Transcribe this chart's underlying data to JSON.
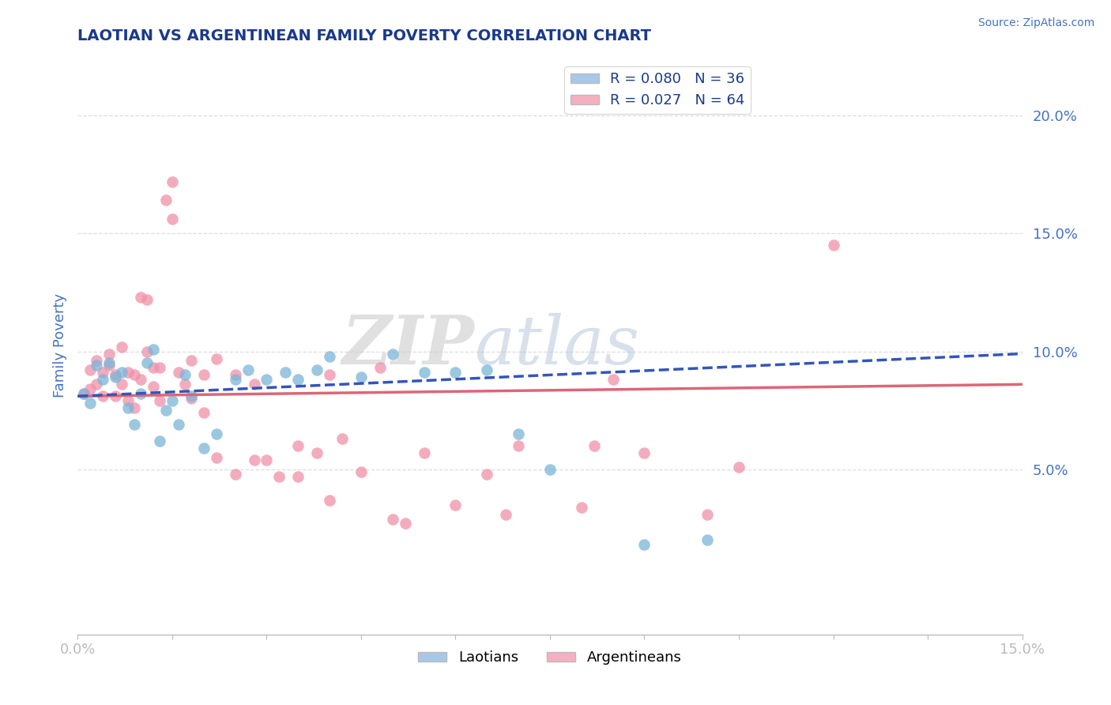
{
  "title": "LAOTIAN VS ARGENTINEAN FAMILY POVERTY CORRELATION CHART",
  "source": "Source: ZipAtlas.com",
  "ylabel": "Family Poverty",
  "xlim": [
    0.0,
    0.15
  ],
  "ylim": [
    -0.02,
    0.225
  ],
  "ytick_positions": [
    0.05,
    0.1,
    0.15,
    0.2
  ],
  "ytick_labels": [
    "5.0%",
    "10.0%",
    "15.0%",
    "20.0%"
  ],
  "xtick_positions": [
    0.0,
    0.015,
    0.03,
    0.045,
    0.06,
    0.075,
    0.09,
    0.105,
    0.12,
    0.135,
    0.15
  ],
  "xtick_labels": [
    "0.0%",
    "",
    "",
    "",
    "",
    "",
    "",
    "",
    "",
    "",
    "15.0%"
  ],
  "legend_top": [
    {
      "label": "R = 0.080   N = 36",
      "color": "#a8c8e8"
    },
    {
      "label": "R = 0.027   N = 64",
      "color": "#f4b0c0"
    }
  ],
  "legend_bottom": [
    {
      "label": "Laotians",
      "color": "#a8c8e8"
    },
    {
      "label": "Argentineans",
      "color": "#f4b0c0"
    }
  ],
  "laotian_dot_color": "#7ab5d8",
  "argentinean_dot_color": "#f090a8",
  "laotian_line_color": "#3355bb",
  "argentinean_line_color": "#dd6677",
  "laotian_scatter": [
    [
      0.001,
      0.082
    ],
    [
      0.002,
      0.078
    ],
    [
      0.003,
      0.094
    ],
    [
      0.004,
      0.088
    ],
    [
      0.005,
      0.095
    ],
    [
      0.006,
      0.089
    ],
    [
      0.007,
      0.091
    ],
    [
      0.008,
      0.076
    ],
    [
      0.009,
      0.069
    ],
    [
      0.01,
      0.082
    ],
    [
      0.011,
      0.095
    ],
    [
      0.012,
      0.101
    ],
    [
      0.013,
      0.062
    ],
    [
      0.014,
      0.075
    ],
    [
      0.015,
      0.079
    ],
    [
      0.016,
      0.069
    ],
    [
      0.017,
      0.09
    ],
    [
      0.018,
      0.081
    ],
    [
      0.02,
      0.059
    ],
    [
      0.022,
      0.065
    ],
    [
      0.025,
      0.088
    ],
    [
      0.027,
      0.092
    ],
    [
      0.03,
      0.088
    ],
    [
      0.033,
      0.091
    ],
    [
      0.035,
      0.088
    ],
    [
      0.038,
      0.092
    ],
    [
      0.04,
      0.098
    ],
    [
      0.045,
      0.089
    ],
    [
      0.05,
      0.099
    ],
    [
      0.055,
      0.091
    ],
    [
      0.06,
      0.091
    ],
    [
      0.065,
      0.092
    ],
    [
      0.07,
      0.065
    ],
    [
      0.075,
      0.05
    ],
    [
      0.09,
      0.018
    ],
    [
      0.1,
      0.02
    ]
  ],
  "argentinean_scatter": [
    [
      0.001,
      0.082
    ],
    [
      0.002,
      0.092
    ],
    [
      0.002,
      0.084
    ],
    [
      0.003,
      0.096
    ],
    [
      0.003,
      0.086
    ],
    [
      0.004,
      0.091
    ],
    [
      0.004,
      0.081
    ],
    [
      0.005,
      0.099
    ],
    [
      0.005,
      0.094
    ],
    [
      0.006,
      0.09
    ],
    [
      0.006,
      0.081
    ],
    [
      0.007,
      0.102
    ],
    [
      0.007,
      0.086
    ],
    [
      0.008,
      0.091
    ],
    [
      0.008,
      0.079
    ],
    [
      0.009,
      0.09
    ],
    [
      0.009,
      0.076
    ],
    [
      0.01,
      0.123
    ],
    [
      0.01,
      0.088
    ],
    [
      0.011,
      0.1
    ],
    [
      0.011,
      0.122
    ],
    [
      0.012,
      0.093
    ],
    [
      0.012,
      0.085
    ],
    [
      0.013,
      0.093
    ],
    [
      0.013,
      0.079
    ],
    [
      0.014,
      0.164
    ],
    [
      0.015,
      0.172
    ],
    [
      0.015,
      0.156
    ],
    [
      0.016,
      0.091
    ],
    [
      0.017,
      0.086
    ],
    [
      0.018,
      0.096
    ],
    [
      0.018,
      0.08
    ],
    [
      0.02,
      0.09
    ],
    [
      0.02,
      0.074
    ],
    [
      0.022,
      0.097
    ],
    [
      0.022,
      0.055
    ],
    [
      0.025,
      0.09
    ],
    [
      0.025,
      0.048
    ],
    [
      0.028,
      0.086
    ],
    [
      0.028,
      0.054
    ],
    [
      0.03,
      0.054
    ],
    [
      0.032,
      0.047
    ],
    [
      0.035,
      0.06
    ],
    [
      0.035,
      0.047
    ],
    [
      0.038,
      0.057
    ],
    [
      0.04,
      0.09
    ],
    [
      0.04,
      0.037
    ],
    [
      0.042,
      0.063
    ],
    [
      0.045,
      0.049
    ],
    [
      0.048,
      0.093
    ],
    [
      0.05,
      0.029
    ],
    [
      0.052,
      0.027
    ],
    [
      0.055,
      0.057
    ],
    [
      0.06,
      0.035
    ],
    [
      0.065,
      0.048
    ],
    [
      0.068,
      0.031
    ],
    [
      0.07,
      0.06
    ],
    [
      0.08,
      0.034
    ],
    [
      0.082,
      0.06
    ],
    [
      0.085,
      0.088
    ],
    [
      0.09,
      0.057
    ],
    [
      0.1,
      0.031
    ],
    [
      0.105,
      0.051
    ],
    [
      0.12,
      0.145
    ]
  ],
  "grid_color": "#dddddd",
  "bg_color": "#ffffff",
  "title_color": "#1a3a8a",
  "tick_color": "#4472c4",
  "axis_color": "#4472c4",
  "watermark_text": "ZIPatlas",
  "watermark_color": "#cccccc"
}
